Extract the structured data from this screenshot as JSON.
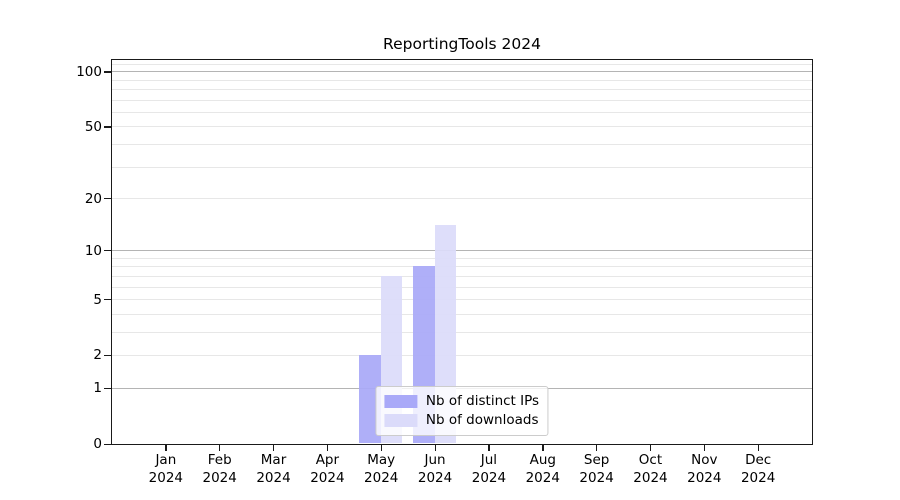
{
  "chart_data": {
    "type": "bar",
    "title": "ReportingTools 2024",
    "yscale": "log1p",
    "ylim": [
      0,
      116
    ],
    "grid": true,
    "categories": [
      "Jan 2024",
      "Feb 2024",
      "Mar 2024",
      "Apr 2024",
      "May 2024",
      "Jun 2024",
      "Jul 2024",
      "Aug 2024",
      "Sep 2024",
      "Oct 2024",
      "Nov 2024",
      "Dec 2024"
    ],
    "series": [
      {
        "name": "Nb of distinct IPs",
        "color": "#a9a9f8",
        "values": [
          0,
          0,
          0,
          0,
          2,
          8,
          0,
          0,
          0,
          0,
          0,
          0
        ]
      },
      {
        "name": "Nb of downloads",
        "color": "#dbdbfa",
        "values": [
          0,
          0,
          0,
          0,
          7,
          14,
          0,
          0,
          0,
          0,
          0,
          0
        ]
      }
    ],
    "y_tick_labels": [
      0,
      1,
      2,
      5,
      10,
      20,
      50,
      100
    ],
    "y_major_gridlines": [
      1,
      10,
      100
    ],
    "y_minor_gridlines": [
      2,
      3,
      4,
      5,
      6,
      7,
      8,
      9,
      20,
      30,
      40,
      50,
      60,
      70,
      80,
      90,
      110
    ],
    "legend_position": "lower center"
  },
  "colors": {
    "bar_ips": "#a9a9f8",
    "bar_downloads": "#dbdbfa",
    "grid_major": "#b4b4b4",
    "grid_minor": "#e7e7e7",
    "axis": "#1a1a1a",
    "text": "#000000",
    "legend_border": "#cccccc"
  }
}
